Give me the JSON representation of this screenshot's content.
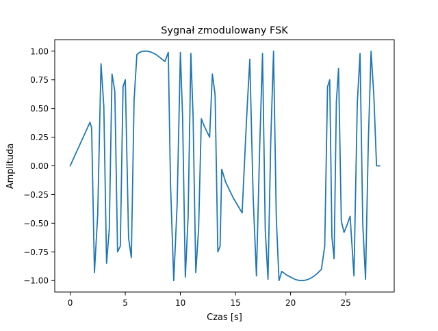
{
  "chart_data": {
    "type": "line",
    "title": "Sygnał zmodulowany FSK",
    "xlabel": "Czas [s]",
    "ylabel": "Amplituda",
    "xlim": [
      -1.4,
      29.4
    ],
    "ylim": [
      -1.1,
      1.1
    ],
    "xticks": [
      0,
      5,
      10,
      15,
      20,
      25
    ],
    "yticks": [
      -1.0,
      -0.75,
      -0.5,
      -0.25,
      0.0,
      0.25,
      0.5,
      0.75,
      1.0
    ],
    "xtick_labels": [
      "0",
      "5",
      "10",
      "15",
      "20",
      "25"
    ],
    "ytick_labels": [
      "−1.00",
      "−0.75",
      "−0.50",
      "−0.25",
      "0.00",
      "0.25",
      "0.50",
      "0.75",
      "1.00"
    ],
    "grid": false,
    "color": "#1f77b4",
    "series": [
      {
        "x": [
          0.0,
          1.8,
          1.95,
          2.2,
          2.5,
          2.8,
          3.05,
          3.3,
          3.55,
          3.8,
          4.05,
          4.3,
          4.55,
          4.8,
          5.0,
          5.3,
          5.55,
          5.8,
          6.05,
          6.3,
          6.6,
          7.0,
          7.4,
          7.8,
          8.2,
          8.6,
          8.9,
          9.1,
          9.4,
          9.7,
          10.0,
          10.2,
          10.45,
          10.7,
          10.95,
          11.15,
          11.4,
          11.65,
          11.9,
          12.15,
          12.4,
          12.65,
          12.9,
          13.15,
          13.4,
          13.6,
          13.75,
          14.1,
          14.8,
          15.6,
          16.0,
          16.3,
          16.6,
          16.9,
          17.2,
          17.45,
          17.7,
          17.95,
          18.2,
          18.45,
          18.7,
          18.95,
          19.2,
          19.6,
          20.0,
          20.4,
          20.8,
          21.2,
          21.6,
          22.0,
          22.4,
          22.8,
          23.1,
          23.35,
          23.55,
          23.75,
          23.95,
          24.15,
          24.35,
          24.6,
          24.85,
          25.1,
          25.4,
          25.75,
          26.05,
          26.3,
          26.55,
          26.8,
          27.05,
          27.3,
          27.55,
          27.8,
          28.1
        ],
        "y": [
          0.0,
          0.38,
          0.33,
          -0.93,
          -0.42,
          0.89,
          0.52,
          -0.85,
          -0.55,
          0.8,
          0.65,
          -0.75,
          -0.7,
          0.69,
          0.75,
          -0.63,
          -0.8,
          0.57,
          0.97,
          0.99,
          1.0,
          1.0,
          0.99,
          0.97,
          0.94,
          0.91,
          0.99,
          -0.15,
          -1.0,
          -0.34,
          0.99,
          0.43,
          -0.97,
          -0.44,
          0.98,
          0.44,
          -0.93,
          -0.55,
          0.41,
          0.35,
          0.3,
          0.25,
          0.8,
          0.62,
          -0.75,
          -0.7,
          -0.03,
          -0.14,
          -0.28,
          -0.41,
          0.4,
          0.93,
          -0.27,
          -0.96,
          0.17,
          0.98,
          -0.56,
          -0.99,
          0.21,
          1.0,
          -0.45,
          -1.0,
          -0.92,
          -0.95,
          -0.97,
          -0.99,
          -1.0,
          -1.0,
          -0.99,
          -0.97,
          -0.94,
          -0.9,
          -0.7,
          0.69,
          0.75,
          -0.62,
          -0.81,
          0.56,
          0.85,
          -0.48,
          -0.58,
          -0.52,
          -0.44,
          -0.96,
          0.55,
          0.98,
          -0.51,
          -0.99,
          0.21,
          1.0,
          0.62,
          0.0,
          0.0
        ]
      }
    ]
  }
}
